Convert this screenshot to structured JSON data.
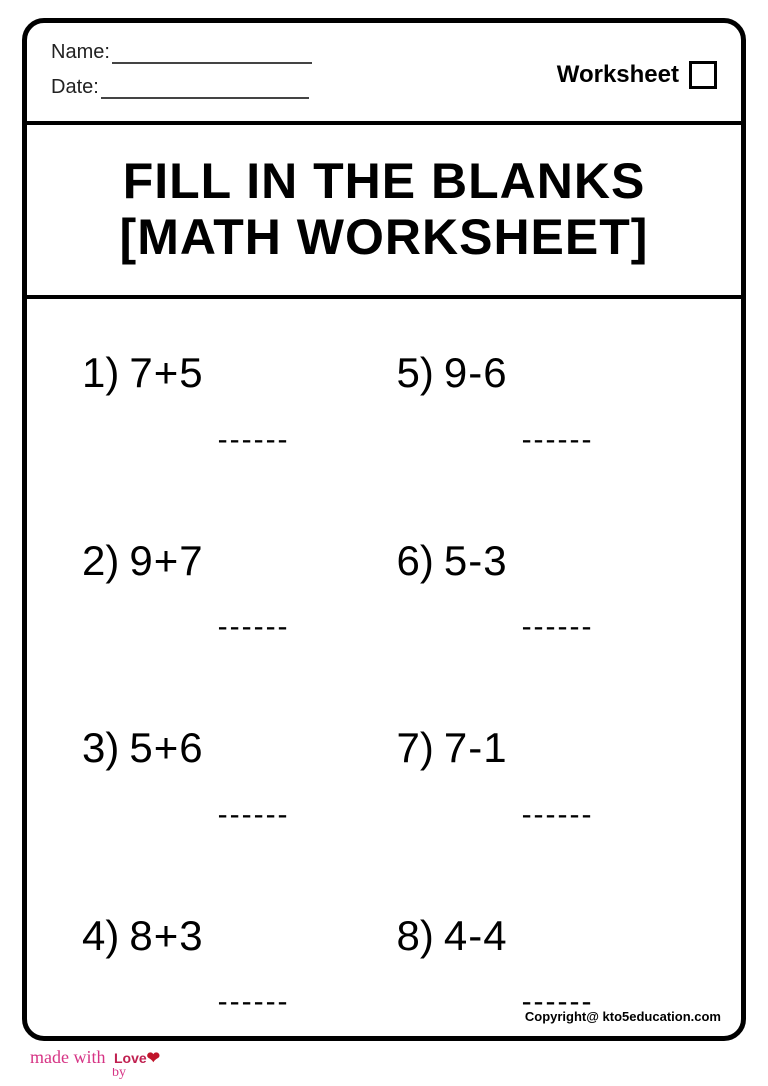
{
  "header": {
    "name_label": "Name:",
    "date_label": "Date:",
    "worksheet_label": "Worksheet"
  },
  "title": {
    "line1": "FILL IN THE BLANKS",
    "line2": "[MATH WORKSHEET]"
  },
  "problems": [
    {
      "num": "1)",
      "expr": "7+5"
    },
    {
      "num": "5)",
      "expr": "9-6"
    },
    {
      "num": "2)",
      "expr": "9+7"
    },
    {
      "num": "6)",
      "expr": "5-3"
    },
    {
      "num": "3)",
      "expr": "5+6"
    },
    {
      "num": "7)",
      "expr": "7-1"
    },
    {
      "num": "4)",
      "expr": "8+3"
    },
    {
      "num": "8)",
      "expr": "4-4"
    }
  ],
  "blank_placeholder": "------",
  "footer": {
    "copyright": "Copyright@ kto5education.com",
    "made_prefix": "made with",
    "love": "Love",
    "by": "by"
  },
  "colors": {
    "border": "#000000",
    "text": "#000000",
    "background": "#ffffff",
    "accent_pink": "#d63384",
    "heart_red": "#c0152a"
  }
}
